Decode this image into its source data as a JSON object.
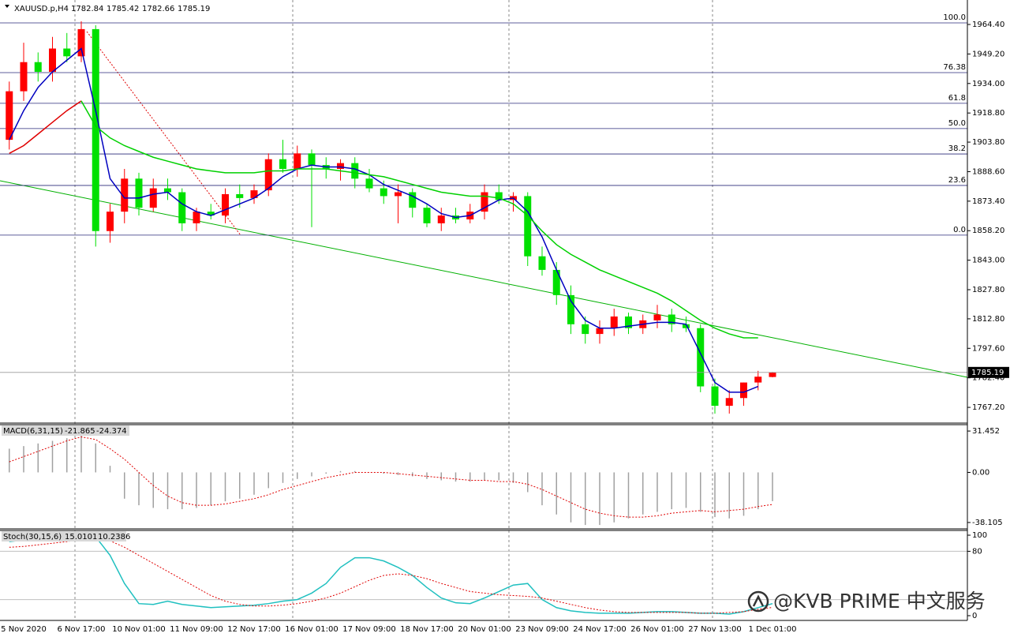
{
  "chart_data": [
    {
      "type": "candlestick",
      "title": "XAUUSD.p,H4",
      "categories": [
        null,
        "5 Nov 2020",
        null,
        null,
        null,
        "6 Nov 17:00",
        null,
        null,
        null,
        "10 Nov 01:00",
        null,
        null,
        null,
        "11 Nov 09:00",
        null,
        null,
        null,
        "12 Nov 17:00",
        null,
        null,
        null,
        "16 Nov 01:00",
        null,
        null,
        null,
        "17 Nov 09:00",
        null,
        null,
        null,
        "18 Nov 17:00",
        null,
        null,
        null,
        "20 Nov 01:00",
        null,
        null,
        null,
        "23 Nov 09:00",
        null,
        null,
        null,
        "24 Nov 17:00",
        null,
        null,
        null,
        "26 Nov 01:00",
        null,
        null,
        null,
        "27 Nov 13:00",
        null,
        null,
        null,
        "1 Dec 01:00"
      ],
      "open": [
        1905,
        1930,
        1945,
        1940,
        1952,
        1948,
        1962,
        1858,
        1868,
        1885,
        1870,
        1880,
        1878,
        1862,
        1868,
        1866,
        1877,
        1875,
        1879,
        1895,
        1890,
        1898,
        1892,
        1890,
        1893,
        1885,
        1880,
        1876,
        1878,
        1870,
        1862,
        1866,
        1864,
        1868,
        1878,
        1874,
        1876,
        1845,
        1838,
        1825,
        1810,
        1805,
        1808,
        1814,
        1808,
        1812,
        1815,
        1810,
        1808,
        1778,
        1768,
        1772,
        1780,
        1782.84
      ],
      "high": [
        1935,
        1955,
        1950,
        1958,
        1960,
        1966,
        1964,
        1872,
        1890,
        1888,
        1885,
        1885,
        1880,
        1870,
        1872,
        1880,
        1882,
        1882,
        1898,
        1905,
        1902,
        1900,
        1896,
        1895,
        1896,
        1890,
        1884,
        1882,
        1880,
        1872,
        1870,
        1870,
        1872,
        1882,
        1882,
        1878,
        1878,
        1850,
        1842,
        1830,
        1814,
        1812,
        1818,
        1816,
        1815,
        1820,
        1818,
        1814,
        1810,
        1782,
        1776,
        1780,
        1786,
        1785.42
      ],
      "low": [
        1900,
        1925,
        1935,
        1935,
        1945,
        1945,
        1850,
        1852,
        1862,
        1866,
        1868,
        1874,
        1858,
        1858,
        1864,
        1862,
        1870,
        1872,
        1876,
        1888,
        1886,
        1860,
        1885,
        1884,
        1880,
        1878,
        1872,
        1862,
        1865,
        1860,
        1858,
        1862,
        1862,
        1864,
        1872,
        1868,
        1840,
        1835,
        1820,
        1805,
        1800,
        1800,
        1804,
        1805,
        1805,
        1808,
        1806,
        1806,
        1775,
        1764,
        1764,
        1768,
        1776,
        1782.66
      ],
      "close": [
        1930,
        1945,
        1940,
        1952,
        1948,
        1962,
        1858,
        1868,
        1885,
        1870,
        1880,
        1878,
        1862,
        1868,
        1866,
        1877,
        1875,
        1879,
        1895,
        1890,
        1898,
        1892,
        1890,
        1893,
        1885,
        1880,
        1876,
        1878,
        1870,
        1862,
        1866,
        1864,
        1868,
        1878,
        1874,
        1876,
        1845,
        1838,
        1825,
        1810,
        1805,
        1808,
        1814,
        1808,
        1812,
        1815,
        1810,
        1808,
        1778,
        1768,
        1772,
        1780,
        1783,
        1785.19
      ],
      "up_color": "#ff0000",
      "down_color": "#00e000",
      "series": [
        {
          "color": "#0000c0",
          "values": [
            1905,
            1920,
            1932,
            1940,
            1946,
            1952,
            1920,
            1885,
            1875,
            1875,
            1877,
            1878,
            1872,
            1868,
            1866,
            1869,
            1872,
            1875,
            1880,
            1886,
            1890,
            1892,
            1891,
            1891,
            1890,
            1887,
            1882,
            1879,
            1876,
            1872,
            1867,
            1865,
            1866,
            1870,
            1874,
            1875,
            1868,
            1855,
            1838,
            1822,
            1812,
            1808,
            1808,
            1809,
            1810,
            1811,
            1811,
            1810,
            1795,
            1780,
            1775,
            1775,
            1778,
            null
          ]
        },
        {
          "color": "#e00000",
          "values": [
            1898,
            1902,
            1908,
            1914,
            1920,
            1925,
            null,
            null,
            null,
            null,
            null,
            null,
            null,
            null,
            null,
            null,
            null,
            null,
            null,
            null,
            null,
            null,
            null,
            null,
            null,
            null,
            null,
            null,
            null,
            null,
            null,
            null,
            null,
            null,
            null,
            null,
            null,
            null,
            null,
            null,
            null,
            null,
            null,
            null,
            null,
            null,
            null,
            null,
            null,
            null,
            null,
            null,
            null,
            null
          ]
        },
        {
          "color": "#00d000",
          "values": [
            null,
            null,
            null,
            null,
            null,
            1925,
            1912,
            1906,
            1902,
            1899,
            1896,
            1894,
            1892,
            1890,
            1889,
            1888,
            1888,
            1888,
            1889,
            1889,
            1890,
            1890,
            1890,
            1889,
            1888,
            1887,
            1886,
            1884,
            1882,
            1880,
            1878,
            1877,
            1876,
            1876,
            1875,
            1872,
            1866,
            1858,
            1851,
            1846,
            1842,
            1838,
            1835,
            1832,
            1829,
            1826,
            1822,
            1817,
            1812,
            1808,
            1805,
            1803,
            1803,
            null
          ]
        }
      ],
      "fib_levels": [
        {
          "label": "100.0",
          "price": 1965.2
        },
        {
          "label": "76.38",
          "price": 1939.6
        },
        {
          "label": "61.8",
          "price": 1923.8
        },
        {
          "label": "50.0",
          "price": 1910.8
        },
        {
          "label": "38.2",
          "price": 1897.7
        },
        {
          "label": "23.6",
          "price": 1881.5
        },
        {
          "label": "0.0",
          "price": 1855.9
        }
      ],
      "ylim": [
        1759.1,
        1977.0
      ],
      "yticks": [
        {
          "value": 1964.4,
          "label": "1964.40"
        },
        {
          "value": 1949.2,
          "label": "1949.20"
        },
        {
          "value": 1934.0,
          "label": "1934.00"
        },
        {
          "value": 1918.8,
          "label": "1918.80"
        },
        {
          "value": 1903.8,
          "label": "1903.80"
        },
        {
          "value": 1888.6,
          "label": "1888.60"
        },
        {
          "value": 1873.4,
          "label": "1873.40"
        },
        {
          "value": 1858.2,
          "label": "1858.20"
        },
        {
          "value": 1843.0,
          "label": "1843.00"
        },
        {
          "value": 1827.8,
          "label": "1827.80"
        },
        {
          "value": 1812.8,
          "label": "1812.80"
        },
        {
          "value": 1797.6,
          "label": "1797.60"
        },
        {
          "value": 1782.4,
          "label": "1782.40"
        },
        {
          "value": 1767.2,
          "label": "1767.20"
        }
      ]
    },
    {
      "type": "macd",
      "title": "MACD(6,31,15)",
      "series": [
        {
          "type": "bar",
          "color": "#a0a0a0",
          "values": [
            18,
            20,
            22,
            24,
            26,
            28,
            22,
            5,
            -20,
            -25,
            -27,
            -28,
            -28,
            -27,
            -25,
            -22,
            -20,
            -17,
            -12,
            -8,
            -5,
            -3,
            -1,
            1,
            1,
            0,
            -1,
            -2,
            -3,
            -5,
            -6,
            -7,
            -7,
            -6,
            -6,
            -8,
            -15,
            -25,
            -32,
            -38,
            -40,
            -40,
            -38,
            -35,
            -32,
            -30,
            -28,
            -27,
            -30,
            -34,
            -35,
            -33,
            -28,
            -21.865
          ]
        },
        {
          "type": "line",
          "dash": true,
          "color": "#e00000",
          "values": [
            8,
            12,
            16,
            20,
            24,
            27,
            25,
            18,
            10,
            0,
            -10,
            -18,
            -23,
            -25,
            -25,
            -24,
            -22,
            -20,
            -17,
            -13,
            -10,
            -7,
            -4,
            -2,
            0,
            0,
            0,
            -1,
            -2,
            -3,
            -4,
            -5,
            -6,
            -6,
            -7,
            -7,
            -9,
            -13,
            -18,
            -23,
            -28,
            -31,
            -33,
            -34,
            -34,
            -33,
            -31,
            -30,
            -29,
            -30,
            -29,
            -28,
            -26,
            -24.374
          ]
        }
      ],
      "ylim": [
        -42.95,
        36.3
      ],
      "yticks": [
        31.452,
        {
          "value": 0,
          "label": "0.00"
        },
        -38.105
      ]
    },
    {
      "type": "stochastic",
      "title": "Stoch(30,15,6)",
      "series": [
        {
          "type": "line",
          "color": "#20c0c0",
          "values": [
            92,
            94,
            96,
            97,
            98,
            100,
            98,
            75,
            40,
            15,
            14,
            18,
            14,
            12,
            10,
            11,
            12,
            13,
            15,
            18,
            20,
            28,
            40,
            60,
            72,
            72,
            68,
            60,
            50,
            35,
            22,
            16,
            15,
            22,
            30,
            38,
            40,
            20,
            10,
            6,
            4,
            3,
            3,
            3,
            4,
            5,
            5,
            4,
            3,
            3,
            2,
            5,
            10,
            15.0101
          ]
        },
        {
          "type": "line",
          "dash": true,
          "color": "#e00000",
          "values": [
            85,
            86,
            88,
            90,
            92,
            95,
            96,
            93,
            85,
            75,
            65,
            55,
            45,
            35,
            25,
            18,
            14,
            12,
            12,
            13,
            15,
            18,
            22,
            28,
            36,
            44,
            50,
            52,
            50,
            46,
            40,
            35,
            30,
            28,
            26,
            25,
            24,
            22,
            18,
            14,
            10,
            7,
            5,
            4,
            4,
            4,
            4,
            4,
            3,
            3,
            4,
            5,
            8,
            10.2386
          ]
        }
      ],
      "levels": [
        80,
        20
      ],
      "ylim": [
        -5.9,
        105.9
      ],
      "yticks": [
        100,
        80,
        0
      ]
    }
  ],
  "watermark": "@KVB PRIME 中文服务"
}
